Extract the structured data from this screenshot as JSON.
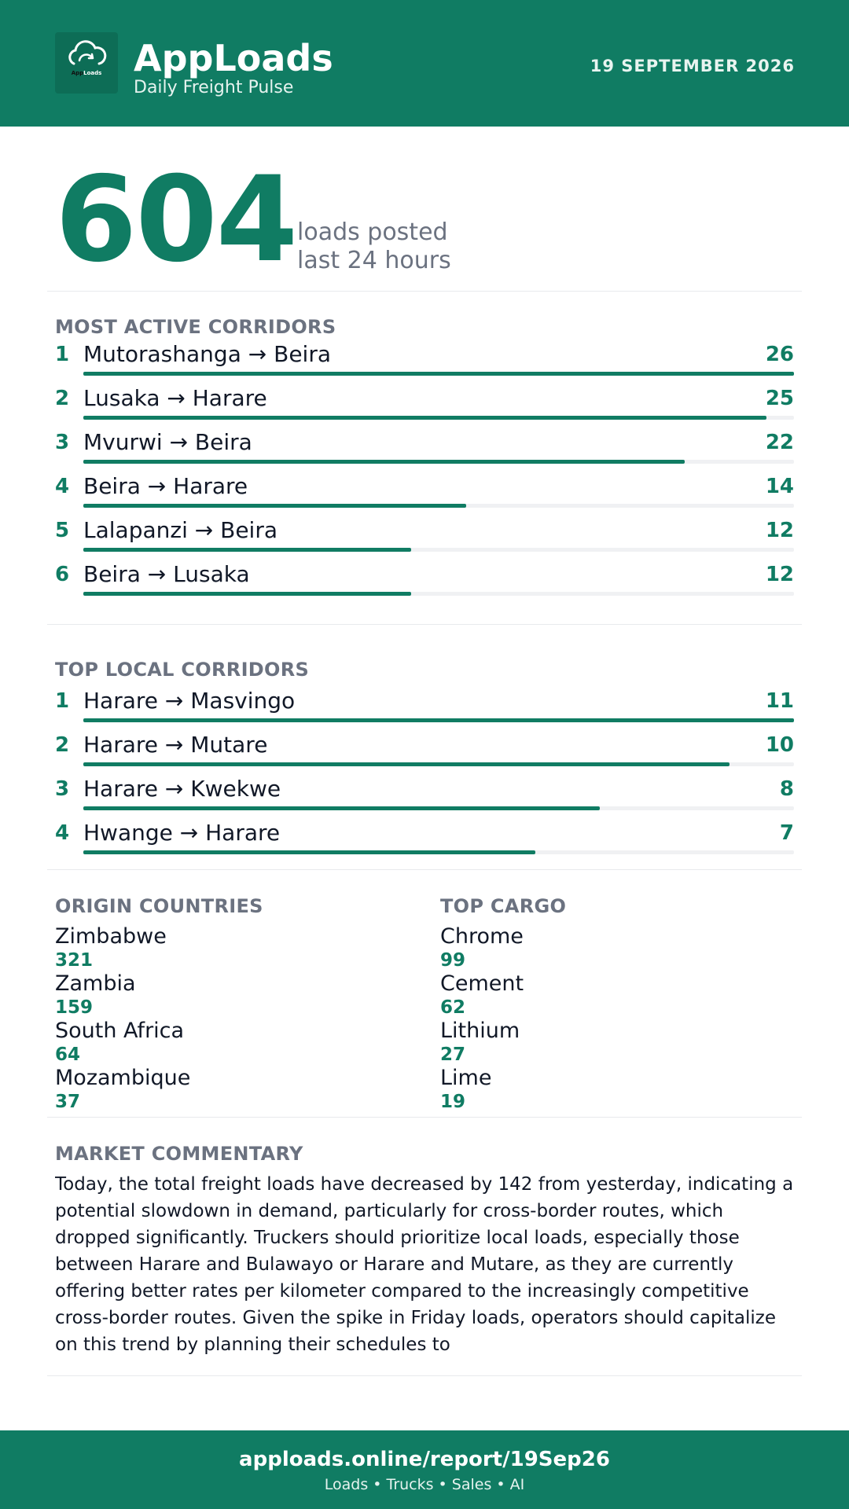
{
  "header": {
    "logo_text_main": "App",
    "logo_text_accent": "Loads",
    "brand": "AppLoads",
    "tagline": "Daily Freight Pulse",
    "date": "19 SEPTEMBER 2026",
    "colors": {
      "primary": "#107c63",
      "logo_bg": "#0d6d56"
    },
    "logo_icon": "cloud-refresh-icon"
  },
  "hero": {
    "value": "604",
    "line1": "loads posted",
    "line2": "last 24 hours"
  },
  "most_active": {
    "title": "MOST ACTIVE CORRIDORS",
    "max": 26,
    "items": [
      {
        "rank": "1",
        "name": "Mutorashanga → Beira",
        "value": 26
      },
      {
        "rank": "2",
        "name": "Lusaka → Harare",
        "value": 25
      },
      {
        "rank": "3",
        "name": "Mvurwi → Beira",
        "value": 22
      },
      {
        "rank": "4",
        "name": "Beira → Harare",
        "value": 14
      },
      {
        "rank": "5",
        "name": "Lalapanzi → Beira",
        "value": 12
      },
      {
        "rank": "6",
        "name": "Beira → Lusaka",
        "value": 12
      }
    ]
  },
  "top_local": {
    "title": "TOP LOCAL CORRIDORS",
    "max": 11,
    "items": [
      {
        "rank": "1",
        "name": "Harare → Masvingo",
        "value": 11
      },
      {
        "rank": "2",
        "name": "Harare → Mutare",
        "value": 10
      },
      {
        "rank": "3",
        "name": "Harare → Kwekwe",
        "value": 8
      },
      {
        "rank": "4",
        "name": "Hwange → Harare",
        "value": 7
      }
    ]
  },
  "origin_countries": {
    "title": "ORIGIN COUNTRIES",
    "items": [
      {
        "name": "Zimbabwe",
        "value": "321"
      },
      {
        "name": "Zambia",
        "value": "159"
      },
      {
        "name": "South Africa",
        "value": "64"
      },
      {
        "name": "Mozambique",
        "value": "37"
      }
    ]
  },
  "top_cargo": {
    "title": "TOP CARGO",
    "items": [
      {
        "name": "Chrome",
        "value": "99"
      },
      {
        "name": "Cement",
        "value": "62"
      },
      {
        "name": "Lithium",
        "value": "27"
      },
      {
        "name": "Lime",
        "value": "19"
      }
    ]
  },
  "commentary": {
    "title": "MARKET COMMENTARY",
    "text": "Today, the total freight loads have decreased by 142 from yesterday, indicating a potential slowdown in demand, particularly for cross-border routes, which dropped significantly. Truckers should prioritize local loads, especially those between Harare and Bulawayo or Harare and Mutare, as they are currently offering better rates per kilometer compared to the increasingly competitive cross-border routes. Given the spike in Friday loads, operators should capitalize on this trend by planning their schedules to"
  },
  "footer": {
    "url": "apploads.online/report/19Sep26",
    "sub": "Loads • Trucks • Sales • AI"
  }
}
